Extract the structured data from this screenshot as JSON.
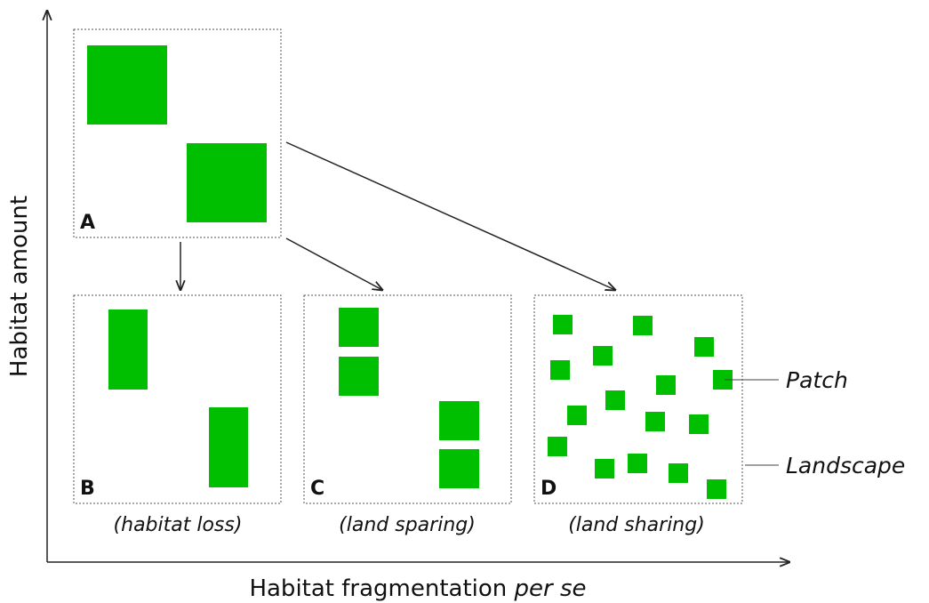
{
  "y_axis": {
    "label": "Habitat amount"
  },
  "x_axis": {
    "label": "Habitat fragmentation ",
    "label_italic": "per se"
  },
  "panels": [
    {
      "letter": "A"
    },
    {
      "letter": "B",
      "caption": "(habitat loss)"
    },
    {
      "letter": "C",
      "caption": "(land sparing)"
    },
    {
      "letter": "D",
      "caption": "(land sharing)"
    }
  ],
  "annotations": [
    "Patch",
    "Landscape"
  ]
}
